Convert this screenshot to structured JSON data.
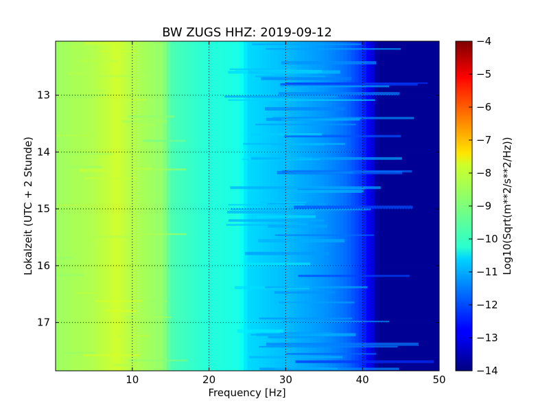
{
  "chart_data": {
    "type": "heatmap",
    "title": "BW ZUGS HHZ: 2019-09-12",
    "xlabel": "Frequency [Hz]",
    "ylabel": "Lokalzeit (UTC + 2 Stunde)",
    "colorbar_label": "Log10(Sqrt(m**2/s**2/Hz))",
    "xlim": [
      0,
      50
    ],
    "ylim_top_to_bottom": [
      12.05,
      17.85
    ],
    "x_ticks": [
      10,
      20,
      30,
      40,
      50
    ],
    "y_ticks": [
      13,
      14,
      15,
      16,
      17
    ],
    "colorbar_range": [
      -14,
      -4
    ],
    "colorbar_ticks": [
      -4,
      -5,
      -6,
      -7,
      -8,
      -9,
      -10,
      -11,
      -12,
      -13,
      -14
    ],
    "colormap": "jet",
    "grid": true,
    "spectrum_profile": {
      "frequency_hz": [
        0,
        5,
        8,
        10,
        14,
        15,
        20,
        24,
        25,
        30,
        35,
        38,
        40,
        41,
        42,
        50
      ],
      "log10_amplitude": [
        -8.7,
        -8.5,
        -8.2,
        -8.5,
        -8.8,
        -9.5,
        -9.9,
        -10.0,
        -10.6,
        -10.9,
        -11.3,
        -11.7,
        -12.3,
        -12.9,
        -13.8,
        -13.8
      ]
    }
  },
  "colors": {
    "axis": "#000000",
    "grid": "#000000",
    "background": "#ffffff"
  }
}
